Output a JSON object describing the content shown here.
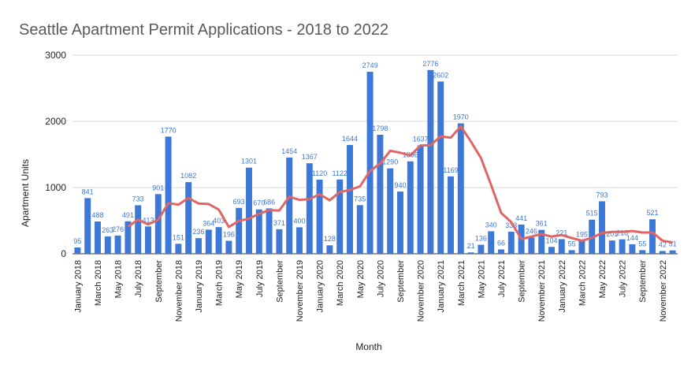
{
  "chart_data": {
    "type": "bar",
    "title": "Seattle Apartment Permit Applications - 2018 to 2022",
    "x_label": "Month",
    "y_label": "Apartment Units",
    "categories": [
      "January 2018",
      null,
      "March 2018",
      null,
      "May 2018",
      null,
      "July 2018",
      null,
      "September",
      null,
      "November 2018",
      null,
      "January 2019",
      null,
      "March 2019",
      null,
      "May 2019",
      null,
      "July 2019",
      null,
      "September",
      null,
      "November 2019",
      null,
      "January 2020",
      null,
      "March 2020",
      null,
      "May 2020",
      null,
      "July 2020",
      null,
      "September",
      null,
      "November 2020",
      null,
      "January 2021",
      null,
      "March 2021",
      null,
      "May 2021",
      null,
      "July 2021",
      null,
      "September",
      null,
      "November 2021",
      null,
      "January 2022",
      null,
      "March 2022",
      null,
      "May 2022",
      null,
      "July 2022",
      null,
      "September",
      null,
      "November 2022",
      null
    ],
    "series": [
      {
        "type": "bar",
        "color": "#3c78d8",
        "values": [
          95,
          841,
          488,
          263,
          276,
          491,
          733,
          413,
          901,
          1770,
          151,
          1082,
          236,
          364,
          403,
          196,
          693,
          1301,
          670,
          686,
          371,
          1454,
          400,
          1367,
          1120,
          128,
          1122,
          1644,
          735,
          2749,
          1798,
          1290,
          940,
          1396,
          1637,
          2776,
          2602,
          1169,
          1970,
          21,
          136,
          340,
          66,
          333,
          441,
          246,
          361,
          104,
          221,
          55,
          195,
          515,
          793,
          201,
          218,
          144,
          55,
          521,
          42,
          51
        ]
      },
      {
        "type": "line",
        "color": "#e06666",
        "values": [
          null,
          null,
          null,
          null,
          null,
          409,
          515,
          444,
          513,
          764,
          743,
          842,
          759,
          751,
          668,
          405,
          496,
          532,
          605,
          658,
          653,
          863,
          814,
          825,
          900,
          807,
          932,
          964,
          1019,
          1250,
          1363,
          1556,
          1526,
          1485,
          1635,
          1640,
          1774,
          1753,
          1925,
          1696,
          1446,
          1040,
          617,
          478,
          223,
          260,
          298,
          259,
          284,
          238,
          197,
          242,
          314,
          330,
          330,
          344,
          321,
          322,
          197,
          172
        ]
      }
    ],
    "ylim": [
      0,
      3000
    ],
    "yticks": [
      0,
      1000,
      2000,
      3000
    ],
    "grid": true
  }
}
